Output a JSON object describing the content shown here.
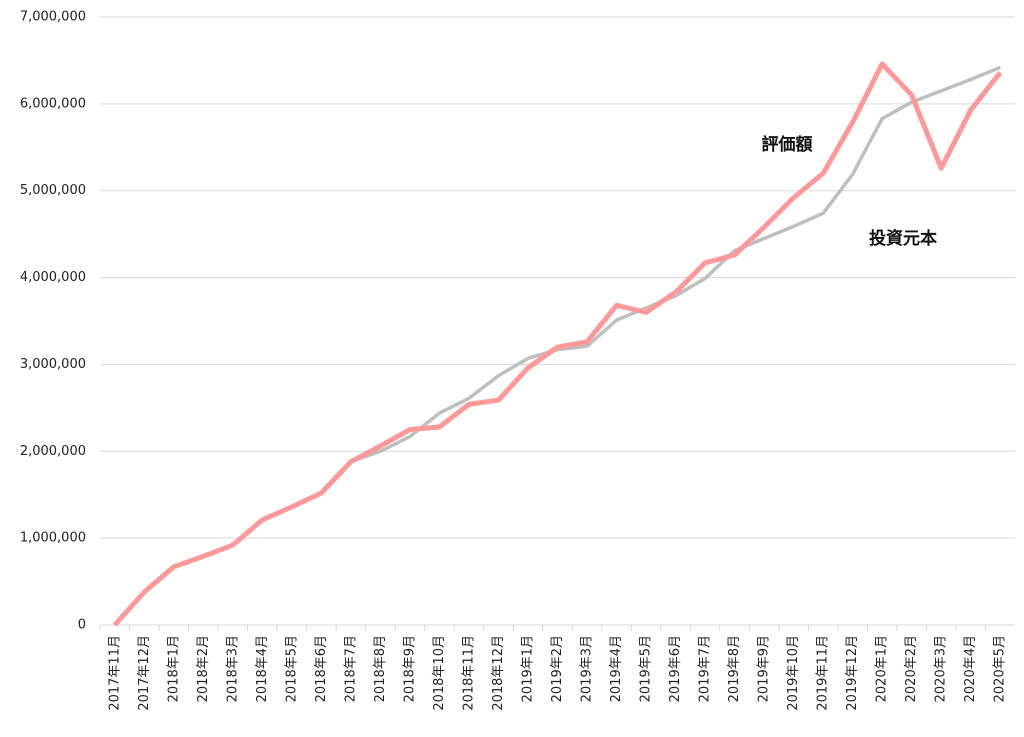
{
  "chart_data": {
    "type": "line",
    "categories": [
      "2017年11月",
      "2017年12月",
      "2018年1月",
      "2018年2月",
      "2018年3月",
      "2018年4月",
      "2018年5月",
      "2018年6月",
      "2018年7月",
      "2018年8月",
      "2018年9月",
      "2018年10月",
      "2018年11月",
      "2018年12月",
      "2019年1月",
      "2019年2月",
      "2019年3月",
      "2019年4月",
      "2019年5月",
      "2019年6月",
      "2019年7月",
      "2019年8月",
      "2019年9月",
      "2019年10月",
      "2019年11月",
      "2019年12月",
      "2020年1月",
      "2020年2月",
      "2020年3月",
      "2020年4月",
      "2020年5月"
    ],
    "series": [
      {
        "name": "投資元本",
        "color": "#bfbfbf",
        "values": [
          0,
          380000,
          670000,
          790000,
          920000,
          1210000,
          1360000,
          1520000,
          1880000,
          2000000,
          2170000,
          2440000,
          2610000,
          2870000,
          3070000,
          3170000,
          3210000,
          3510000,
          3650000,
          3790000,
          3990000,
          4310000,
          4450000,
          4590000,
          4740000,
          5190000,
          5830000,
          6020000,
          6150000,
          6280000,
          6420000
        ]
      },
      {
        "name": "評価額",
        "color": "#ff9999",
        "values": [
          0,
          380000,
          670000,
          790000,
          920000,
          1210000,
          1360000,
          1520000,
          1880000,
          2060000,
          2250000,
          2280000,
          2540000,
          2590000,
          2960000,
          3200000,
          3260000,
          3680000,
          3600000,
          3830000,
          4170000,
          4260000,
          4580000,
          4920000,
          5200000,
          5790000,
          6460000,
          6100000,
          5260000,
          5930000,
          6360000
        ]
      }
    ],
    "ylim": [
      0,
      7000000
    ],
    "yticks": [
      0,
      {
        "value": 1000000,
        "label": "1,000,000"
      },
      {
        "value": 2000000,
        "label": "2,000,000"
      },
      {
        "value": 3000000,
        "label": "3,000,000"
      },
      {
        "value": 4000000,
        "label": "4,000,000"
      },
      {
        "value": 5000000,
        "label": "5,000,000"
      },
      {
        "value": 6000000,
        "label": "6,000,000"
      },
      {
        "value": 7000000,
        "label": "7,000,000"
      }
    ],
    "grid": true
  }
}
